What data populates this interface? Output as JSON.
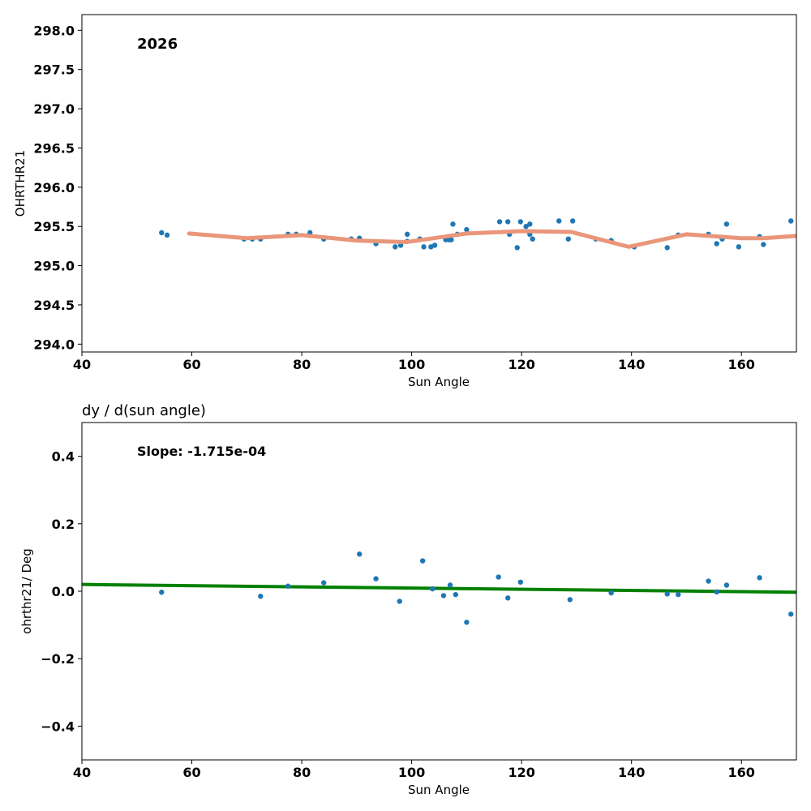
{
  "chart_data": [
    {
      "type": "scatter",
      "annotation": "2026",
      "title": "",
      "xlabel": "Sun Angle",
      "ylabel": "OHRTHR21",
      "xlim": [
        40,
        170
      ],
      "ylim": [
        293.9,
        298.2
      ],
      "xticks": [
        "40",
        "60",
        "80",
        "100",
        "120",
        "140",
        "160"
      ],
      "yticks": [
        "294.0",
        "294.5",
        "295.0",
        "295.5",
        "296.0",
        "296.5",
        "297.0",
        "297.5",
        "298.0"
      ],
      "colors": {
        "points": "#1f77b4",
        "trend": "#e9967a"
      },
      "points": [
        [
          54.5,
          295.42
        ],
        [
          55.5,
          295.39
        ],
        [
          69.5,
          295.34
        ],
        [
          71.0,
          295.34
        ],
        [
          72.5,
          295.34
        ],
        [
          77.5,
          295.4
        ],
        [
          79.0,
          295.4
        ],
        [
          81.5,
          295.42
        ],
        [
          84.0,
          295.34
        ],
        [
          89.0,
          295.34
        ],
        [
          90.5,
          295.35
        ],
        [
          93.5,
          295.28
        ],
        [
          97.0,
          295.24
        ],
        [
          98.0,
          295.26
        ],
        [
          99.2,
          295.31
        ],
        [
          99.2,
          295.4
        ],
        [
          101.5,
          295.34
        ],
        [
          102.2,
          295.24
        ],
        [
          103.5,
          295.24
        ],
        [
          104.2,
          295.26
        ],
        [
          106.2,
          295.33
        ],
        [
          106.8,
          295.33
        ],
        [
          107.2,
          295.33
        ],
        [
          107.5,
          295.53
        ],
        [
          108.3,
          295.4
        ],
        [
          110.0,
          295.46
        ],
        [
          116.0,
          295.56
        ],
        [
          117.5,
          295.56
        ],
        [
          117.8,
          295.4
        ],
        [
          119.2,
          295.23
        ],
        [
          119.8,
          295.56
        ],
        [
          120.8,
          295.5
        ],
        [
          121.5,
          295.53
        ],
        [
          121.5,
          295.4
        ],
        [
          122.0,
          295.34
        ],
        [
          126.8,
          295.57
        ],
        [
          128.5,
          295.34
        ],
        [
          129.3,
          295.57
        ],
        [
          133.5,
          295.34
        ],
        [
          136.3,
          295.32
        ],
        [
          140.5,
          295.24
        ],
        [
          146.5,
          295.23
        ],
        [
          148.5,
          295.39
        ],
        [
          154.0,
          295.4
        ],
        [
          155.5,
          295.28
        ],
        [
          156.5,
          295.34
        ],
        [
          157.3,
          295.53
        ],
        [
          159.5,
          295.24
        ],
        [
          163.3,
          295.37
        ],
        [
          164.0,
          295.27
        ],
        [
          169.0,
          295.57
        ]
      ],
      "trend": [
        [
          59.5,
          295.41
        ],
        [
          70,
          295.35
        ],
        [
          80,
          295.39
        ],
        [
          90,
          295.32
        ],
        [
          99,
          295.3
        ],
        [
          110,
          295.41
        ],
        [
          120,
          295.44
        ],
        [
          129,
          295.43
        ],
        [
          139.5,
          295.24
        ],
        [
          150,
          295.4
        ],
        [
          160,
          295.35
        ],
        [
          164,
          295.35
        ],
        [
          170,
          295.38
        ]
      ]
    },
    {
      "type": "scatter",
      "title": "dy / d(sun angle)",
      "annotation": "Slope: -1.715e-04",
      "xlabel": "Sun Angle",
      "ylabel": "ohrthr21/ Deg",
      "xlim": [
        40,
        170
      ],
      "ylim": [
        -0.5,
        0.5
      ],
      "xticks": [
        "40",
        "60",
        "80",
        "100",
        "120",
        "140",
        "160"
      ],
      "yticks": [
        "0.4",
        "0.2",
        "0.0",
        "−0.2",
        "−0.4"
      ],
      "colors": {
        "points": "#1f77b4",
        "fit": "#008000"
      },
      "points": [
        [
          54.5,
          -0.003
        ],
        [
          72.5,
          -0.015
        ],
        [
          77.5,
          0.015
        ],
        [
          84.0,
          0.025
        ],
        [
          90.5,
          0.11
        ],
        [
          93.5,
          0.037
        ],
        [
          97.8,
          -0.03
        ],
        [
          102.0,
          0.09
        ],
        [
          103.8,
          0.007
        ],
        [
          105.8,
          -0.013
        ],
        [
          107.0,
          0.018
        ],
        [
          108.0,
          -0.01
        ],
        [
          110.0,
          -0.092
        ],
        [
          115.8,
          0.042
        ],
        [
          117.5,
          -0.02
        ],
        [
          119.8,
          0.027
        ],
        [
          128.8,
          -0.025
        ],
        [
          136.3,
          -0.005
        ],
        [
          146.5,
          -0.008
        ],
        [
          148.5,
          -0.01
        ],
        [
          154.0,
          0.03
        ],
        [
          155.5,
          -0.002
        ],
        [
          157.3,
          0.018
        ],
        [
          163.3,
          0.04
        ],
        [
          169.0,
          -0.068
        ]
      ],
      "fit": [
        [
          40,
          0.02
        ],
        [
          170,
          -0.003
        ]
      ]
    }
  ]
}
